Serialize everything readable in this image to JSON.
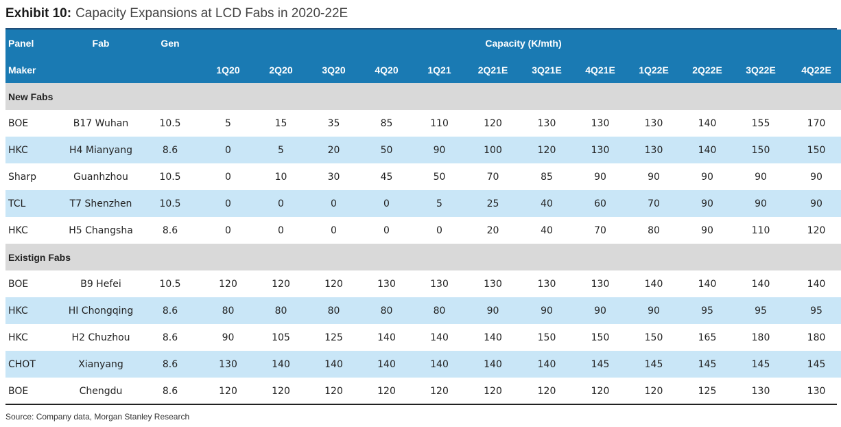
{
  "exhibit": {
    "label": "Exhibit 10:",
    "title": "Capacity Expansions at LCD Fabs in 2020-22E"
  },
  "header": {
    "panel_line1": "Panel",
    "panel_line2": "Maker",
    "fab": "Fab",
    "gen": "Gen",
    "capacity": "Capacity (K/mth)",
    "periods": [
      "1Q20",
      "2Q20",
      "3Q20",
      "4Q20",
      "1Q21",
      "2Q21E",
      "3Q21E",
      "4Q21E",
      "1Q22E",
      "2Q22E",
      "3Q22E",
      "4Q22E"
    ]
  },
  "sections": [
    {
      "name": "New Fabs",
      "rows": [
        {
          "maker": "BOE",
          "fab": "B17 Wuhan",
          "gen": "10.5",
          "values": [
            "5",
            "15",
            "35",
            "85",
            "110",
            "120",
            "130",
            "130",
            "130",
            "140",
            "155",
            "170"
          ]
        },
        {
          "maker": "HKC",
          "fab": "H4 Mianyang",
          "gen": "8.6",
          "values": [
            "0",
            "5",
            "20",
            "50",
            "90",
            "100",
            "120",
            "130",
            "130",
            "140",
            "150",
            "150"
          ]
        },
        {
          "maker": "Sharp",
          "fab": "Guanhzhou",
          "gen": "10.5",
          "values": [
            "0",
            "10",
            "30",
            "45",
            "50",
            "70",
            "85",
            "90",
            "90",
            "90",
            "90",
            "90"
          ]
        },
        {
          "maker": "TCL",
          "fab": "T7 Shenzhen",
          "gen": "10.5",
          "values": [
            "0",
            "0",
            "0",
            "0",
            "5",
            "25",
            "40",
            "60",
            "70",
            "90",
            "90",
            "90"
          ]
        },
        {
          "maker": "HKC",
          "fab": "H5 Changsha",
          "gen": "8.6",
          "values": [
            "0",
            "0",
            "0",
            "0",
            "0",
            "20",
            "40",
            "70",
            "80",
            "90",
            "110",
            "120"
          ]
        }
      ]
    },
    {
      "name": "Existign Fabs",
      "rows": [
        {
          "maker": "BOE",
          "fab": "B9 Hefei",
          "gen": "10.5",
          "values": [
            "120",
            "120",
            "120",
            "130",
            "130",
            "130",
            "130",
            "130",
            "140",
            "140",
            "140",
            "140"
          ]
        },
        {
          "maker": "HKC",
          "fab": "HI Chongqing",
          "gen": "8.6",
          "values": [
            "80",
            "80",
            "80",
            "80",
            "80",
            "90",
            "90",
            "90",
            "90",
            "95",
            "95",
            "95"
          ]
        },
        {
          "maker": "HKC",
          "fab": "H2 Chuzhou",
          "gen": "8.6",
          "values": [
            "90",
            "105",
            "125",
            "140",
            "140",
            "140",
            "150",
            "150",
            "150",
            "165",
            "180",
            "180"
          ]
        },
        {
          "maker": "CHOT",
          "fab": "Xianyang",
          "gen": "8.6",
          "values": [
            "130",
            "140",
            "140",
            "140",
            "140",
            "140",
            "140",
            "145",
            "145",
            "145",
            "145",
            "145"
          ]
        },
        {
          "maker": "BOE",
          "fab": "Chengdu",
          "gen": "8.6",
          "values": [
            "120",
            "120",
            "120",
            "120",
            "120",
            "120",
            "120",
            "120",
            "120",
            "125",
            "130",
            "130"
          ]
        }
      ]
    }
  ],
  "source": "Source: Company data, Morgan Stanley Research",
  "colors": {
    "header_bg": "#1a7ab3",
    "section_bg": "#d9d9d9",
    "alt_row_bg": "#c9e6f7"
  }
}
